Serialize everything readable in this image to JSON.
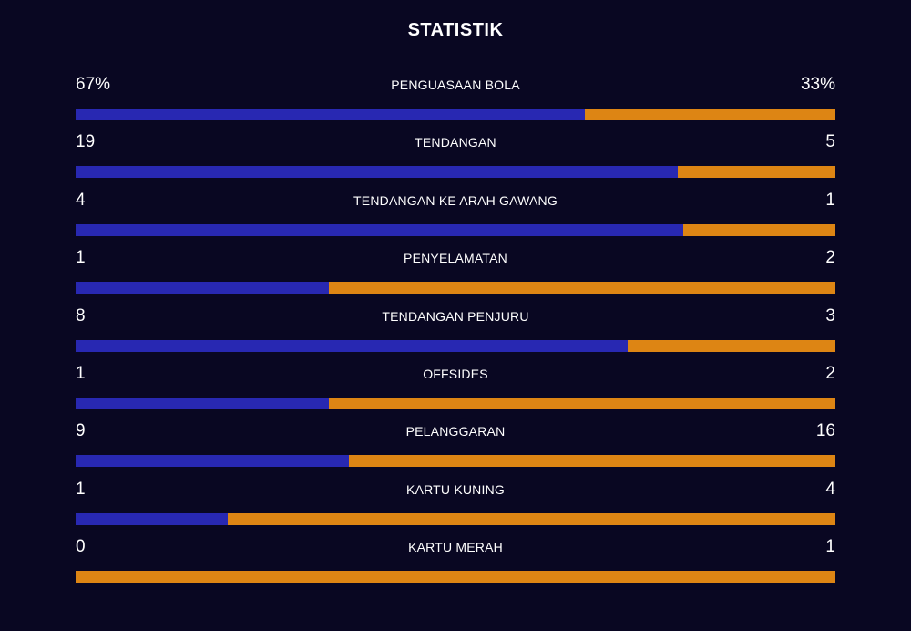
{
  "title": "STATISTIK",
  "colors": {
    "background": "#090722",
    "home": "#2828b2",
    "away": "#dd8514",
    "text": "#ffffff"
  },
  "stats": [
    {
      "label": "PENGUASAAN BOLA",
      "home": "67%",
      "away": "33%",
      "home_share": 0.67
    },
    {
      "label": "TENDANGAN",
      "home": "19",
      "away": "5",
      "home_share": 0.792
    },
    {
      "label": "TENDANGAN KE ARAH GAWANG",
      "home": "4",
      "away": "1",
      "home_share": 0.8
    },
    {
      "label": "PENYELAMATAN",
      "home": "1",
      "away": "2",
      "home_share": 0.333
    },
    {
      "label": "TENDANGAN PENJURU",
      "home": "8",
      "away": "3",
      "home_share": 0.727
    },
    {
      "label": "OFFSIDES",
      "home": "1",
      "away": "2",
      "home_share": 0.333
    },
    {
      "label": "PELANGGARAN",
      "home": "9",
      "away": "16",
      "home_share": 0.36
    },
    {
      "label": "KARTU KUNING",
      "home": "1",
      "away": "4",
      "home_share": 0.2
    },
    {
      "label": "KARTU MERAH",
      "home": "0",
      "away": "1",
      "home_share": 0.0
    }
  ]
}
